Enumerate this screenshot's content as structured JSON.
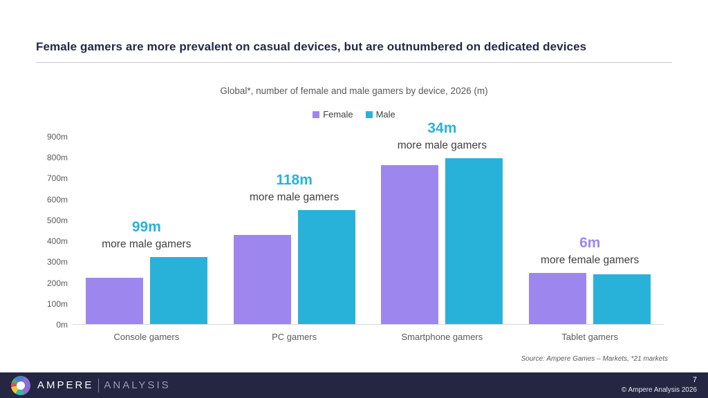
{
  "page": {
    "title": "Female gamers are more prevalent on casual devices, but are outnumbered on dedicated devices",
    "subtitle": "Global*, number of female and male gamers by device, 2026 (m)",
    "source": "Source: Ampere Games – Markets, *21 markets"
  },
  "legend": {
    "female_label": "Female",
    "male_label": "Male"
  },
  "colors": {
    "female": "#9d87ef",
    "male": "#29b2d9",
    "title_navy": "#232946",
    "footer_navy": "#252642",
    "annotation_text": "#3f3f3f",
    "axis_text": "#595959"
  },
  "footer": {
    "brand_primary": "AMPERE",
    "brand_secondary": "ANALYSIS",
    "page_number": "7",
    "copyright": "© Ampere Analysis 2026"
  },
  "chart_data": {
    "type": "bar",
    "title": "Global*, number of female and male gamers by device, 2026 (m)",
    "categories": [
      "Console gamers",
      "PC gamers",
      "Smartphone gamers",
      "Tablet gamers"
    ],
    "series": [
      {
        "name": "Female",
        "values": [
          225,
          430,
          765,
          248
        ]
      },
      {
        "name": "Male",
        "values": [
          324,
          548,
          799,
          242
        ]
      }
    ],
    "annotations": [
      {
        "headline": "99m",
        "text": "more male gamers",
        "color_key": "male"
      },
      {
        "headline": "118m",
        "text": "more male gamers",
        "color_key": "male"
      },
      {
        "headline": "34m",
        "text": "more male gamers",
        "color_key": "male"
      },
      {
        "headline": "6m",
        "text": "more female gamers",
        "color_key": "female"
      }
    ],
    "xlabel": "",
    "ylabel": "",
    "ylim": [
      0,
      900
    ],
    "ytick_step": 100,
    "ytick_labels": [
      "0m",
      "100m",
      "200m",
      "300m",
      "400m",
      "500m",
      "600m",
      "700m",
      "800m",
      "900m"
    ],
    "grid": false,
    "legend_position": "top-center"
  }
}
